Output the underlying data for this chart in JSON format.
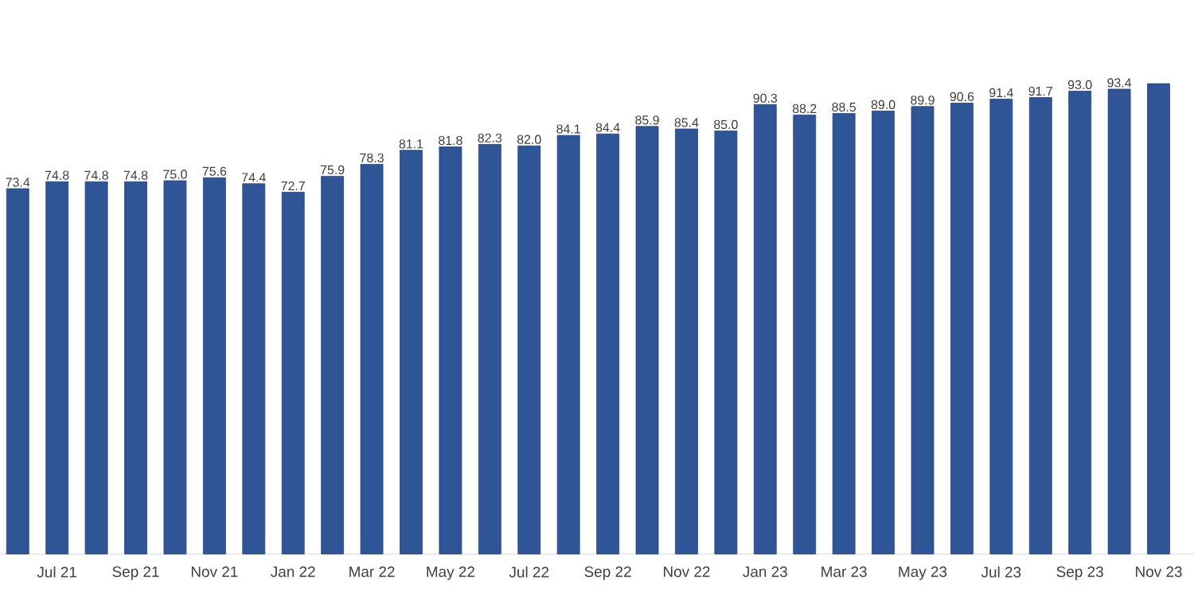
{
  "chart_data": {
    "type": "bar",
    "color": "#2f5597",
    "categories": [
      null,
      "Jul  21",
      null,
      "Sep 21",
      null,
      "Nov 21",
      null,
      "Jan 22",
      null,
      "Mar 22",
      null,
      "May 22",
      null,
      "Jul  22",
      null,
      "Sep 22",
      null,
      "Nov 22",
      null,
      "Jan 23",
      null,
      "Mar 23",
      null,
      "May 23",
      null,
      "Jul 23",
      null,
      "Sep 23",
      null,
      "Nov 23"
    ],
    "values": [
      73.4,
      74.8,
      74.8,
      74.8,
      75.0,
      75.6,
      74.4,
      72.7,
      75.9,
      78.3,
      81.1,
      81.8,
      82.3,
      82.0,
      84.1,
      84.4,
      85.9,
      85.4,
      85.0,
      90.3,
      88.2,
      88.5,
      89.0,
      89.9,
      90.6,
      91.4,
      91.7,
      93.0,
      93.4,
      94.5
    ],
    "value_labels": [
      "73.4",
      "74.8",
      "74.8",
      "74.8",
      "75.0",
      "75.6",
      "74.4",
      "72.7",
      "75.9",
      "78.3",
      "81.1",
      "81.8",
      "82.3",
      "82.0",
      "84.1",
      "84.4",
      "85.9",
      "85.4",
      "85.0",
      "90.3",
      "88.2",
      "88.5",
      "89.0",
      "89.9",
      "90.6",
      "91.4",
      "91.7",
      "93.0",
      "93.4",
      null
    ]
  }
}
